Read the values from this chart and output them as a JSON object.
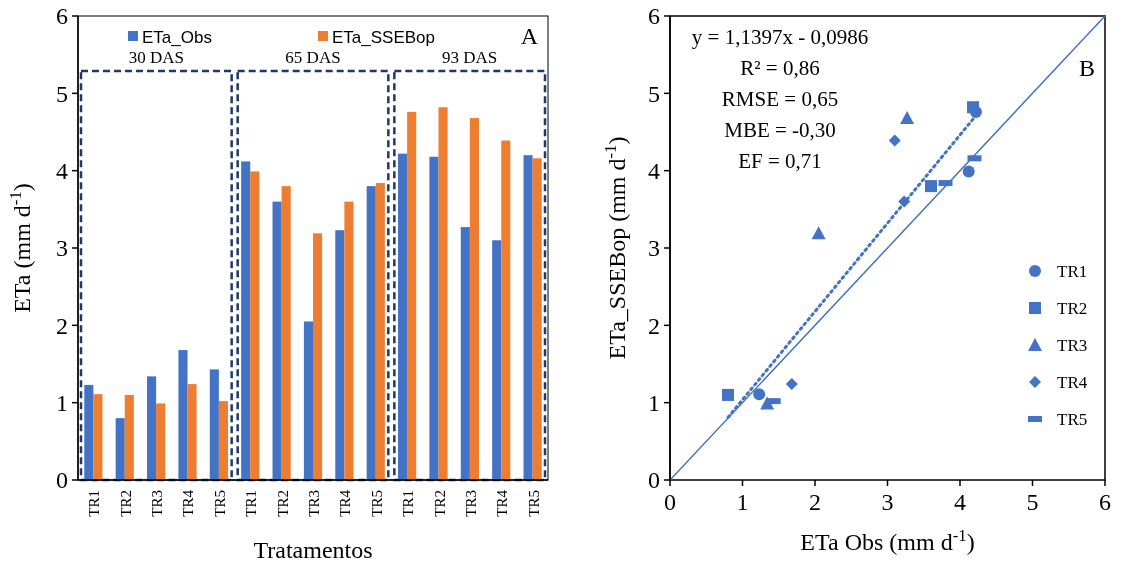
{
  "chart_data": [
    {
      "type": "bar",
      "categories": [
        "TR1",
        "TR2",
        "TR3",
        "TR4",
        "TR5",
        "TR1",
        "TR2",
        "TR3",
        "TR4",
        "TR5",
        "TR1",
        "TR2",
        "TR3",
        "TR4",
        "TR5"
      ],
      "series": [
        {
          "name": "ETa_Obs",
          "color": "#4472c4",
          "values": [
            1.23,
            0.8,
            1.34,
            1.68,
            1.43,
            4.12,
            3.6,
            2.05,
            3.23,
            3.8,
            4.22,
            4.18,
            3.27,
            3.1,
            4.2
          ]
        },
        {
          "name": "ETa_SSEBop",
          "color": "#ed7d31",
          "values": [
            1.11,
            1.1,
            0.99,
            1.24,
            1.02,
            3.99,
            3.8,
            3.19,
            3.6,
            3.84,
            4.76,
            4.82,
            4.68,
            4.39,
            4.16
          ]
        }
      ],
      "ylim": [
        0,
        6
      ],
      "yticks": [
        0,
        1,
        2,
        3,
        4,
        5,
        6
      ],
      "xlabel": "Tratamentos",
      "ylabel": "ETa (mm d$^{-1}$)",
      "legend": "top",
      "grid": false,
      "annotations": [
        "30 DAS",
        "65 DAS",
        "93 DAS",
        "A"
      ]
    },
    {
      "type": "scatter",
      "xlim": [
        0,
        6
      ],
      "ylim": [
        0,
        6
      ],
      "xticks": [
        0,
        1,
        2,
        3,
        4,
        5,
        6
      ],
      "yticks": [
        0,
        1,
        2,
        3,
        4,
        5,
        6
      ],
      "xlabel": "ETa Obs (mm d$^{-1}$)",
      "ylabel": "ETa_SSEBop (mm d$^{-1}$)",
      "legend": "right",
      "grid": false,
      "series": [
        {
          "name": "TR1",
          "color": "#4472c4",
          "marker": "circle",
          "x": [
            1.23,
            4.12,
            4.22
          ],
          "values": [
            1.11,
            3.99,
            4.76
          ]
        },
        {
          "name": "TR2",
          "color": "#4472c4",
          "marker": "square",
          "x": [
            0.8,
            3.6,
            4.18
          ],
          "values": [
            1.1,
            3.8,
            4.82
          ]
        },
        {
          "name": "TR3",
          "color": "#4472c4",
          "marker": "triangle",
          "x": [
            1.34,
            2.05,
            3.27
          ],
          "values": [
            0.99,
            3.19,
            4.68
          ]
        },
        {
          "name": "TR4",
          "color": "#4472c4",
          "marker": "diamond",
          "x": [
            1.68,
            3.23,
            3.1
          ],
          "values": [
            1.24,
            3.6,
            4.39
          ]
        },
        {
          "name": "TR5",
          "color": "#4472c4",
          "x": [
            1.43,
            3.8,
            4.2
          ],
          "values": [
            1.02,
            3.84,
            4.16
          ]
        },
        {
          "type": "line",
          "color": "#4472c4",
          "line_style": "dotted",
          "x": [
            0.8,
            4.2
          ],
          "values": [
            0.81,
            4.69
          ]
        },
        {
          "type": "line",
          "color": "#4472c4",
          "line_style": "solid",
          "x": [
            0,
            6
          ],
          "values": [
            0,
            6
          ]
        }
      ],
      "annotations": [
        "y = 1,1397x - 0,0986",
        "R² = 0,86",
        "RMSE = 0,65",
        "MBE = -0,30",
        "EF = 0,71",
        "B"
      ]
    }
  ]
}
